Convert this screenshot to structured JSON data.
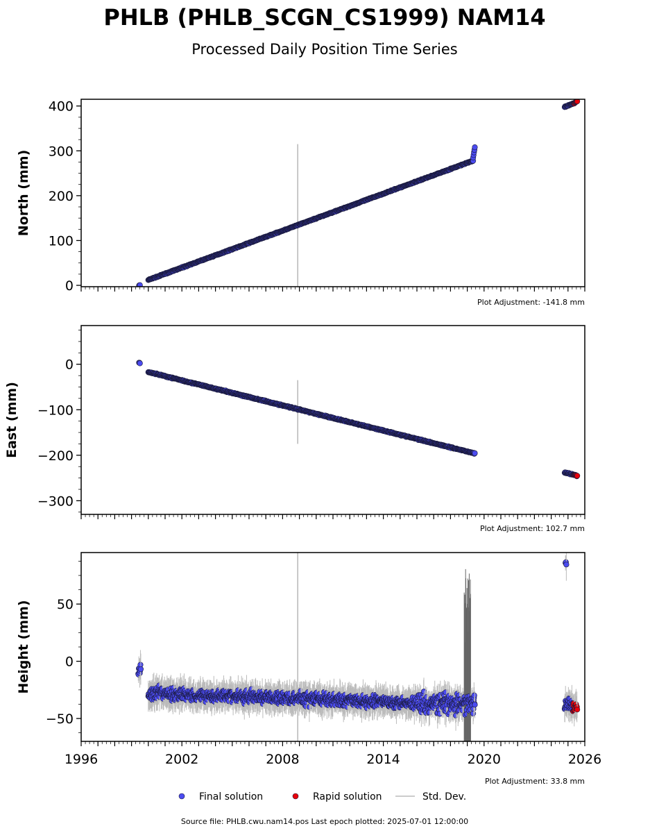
{
  "header": {
    "title": "PHLB (PHLB_SCGN_CS1999) NAM14",
    "subtitle": "Processed Daily Position Time Series"
  },
  "footer": {
    "source": "Source file: PHLB.cwu.nam14.pos  Last epoch plotted: 2025-07-01 12:00:00"
  },
  "colors": {
    "final": "#4b4bf0",
    "rapid": "#e8000b",
    "stddev": "#bbbbbb",
    "edge": "#1a1a3a"
  },
  "legend": [
    {
      "label": "Final solution",
      "color": "#4b4bf0",
      "kind": "dot"
    },
    {
      "label": "Rapid solution",
      "color": "#e8000b",
      "kind": "dot"
    },
    {
      "label": "Std. Dev.",
      "color": "#bbbbbb",
      "kind": "line"
    }
  ],
  "chart_data": [
    {
      "type": "scatter",
      "ylabel": "North (mm)",
      "adjustment": "Plot Adjustment: -141.8 mm",
      "xlim": [
        1996,
        2026
      ],
      "ylim": [
        -3,
        415
      ],
      "yticks": [
        0,
        100,
        200,
        300,
        400
      ],
      "ytick_labels": [
        "0",
        "100",
        "200",
        "300",
        "400"
      ],
      "series": [
        {
          "name": "Final solution",
          "segments": [
            {
              "x": [
                1999.45,
                1999.5
              ],
              "y": [
                0,
                0
              ]
            },
            {
              "x": [
                2000.0,
                2019.35
              ],
              "y": [
                12,
                278
              ]
            },
            {
              "x": [
                2019.35,
                2019.45
              ],
              "y": [
                285,
                308
              ]
            },
            {
              "x": [
                2024.8,
                2025.35
              ],
              "y": [
                398,
                406
              ]
            }
          ]
        },
        {
          "name": "Rapid solution",
          "segments": [
            {
              "x": [
                2025.35,
                2025.55
              ],
              "y": [
                406,
                410
              ]
            }
          ]
        }
      ],
      "stddev_spike": {
        "x": 2008.9,
        "y_range": [
          -3,
          315
        ]
      }
    },
    {
      "type": "scatter",
      "ylabel": "East (mm)",
      "adjustment": "Plot Adjustment: 102.7 mm",
      "xlim": [
        1996,
        2026
      ],
      "ylim": [
        -330,
        85
      ],
      "yticks": [
        0,
        -100,
        -200,
        -300
      ],
      "ytick_labels": [
        "0",
        "−100",
        "−200",
        "−300"
      ],
      "series": [
        {
          "name": "Final solution",
          "segments": [
            {
              "x": [
                1999.45,
                1999.5
              ],
              "y": [
                3,
                3
              ]
            },
            {
              "x": [
                2000.0,
                2019.45
              ],
              "y": [
                -17,
                -196
              ]
            },
            {
              "x": [
                2024.8,
                2025.35
              ],
              "y": [
                -238,
                -243
              ]
            }
          ]
        },
        {
          "name": "Rapid solution",
          "segments": [
            {
              "x": [
                2025.35,
                2025.55
              ],
              "y": [
                -243,
                -245
              ]
            }
          ]
        }
      ],
      "stddev_spike": {
        "x": 2008.9,
        "y_range": [
          -175,
          -35
        ]
      }
    },
    {
      "type": "scatter",
      "ylabel": "Height (mm)",
      "adjustment": "Plot Adjustment: 33.8 mm",
      "xlim": [
        1996,
        2026
      ],
      "ylim": [
        -70,
        95
      ],
      "yticks": [
        50,
        0,
        -50
      ],
      "ytick_labels": [
        "50",
        "0",
        "−50"
      ],
      "xticks": [
        1996,
        2002,
        2008,
        2014,
        2020,
        2026
      ],
      "xtick_labels": [
        "1996",
        "2002",
        "2008",
        "2014",
        "2020",
        "2026"
      ],
      "series": [
        {
          "name": "Final solution",
          "segments": [
            {
              "x": [
                1999.4,
                1999.55
              ],
              "y": [
                -8,
                -8
              ]
            },
            {
              "x": [
                2000.0,
                2019.45
              ],
              "y": [
                -28,
                -38
              ]
            },
            {
              "x": [
                2024.8,
                2025.3
              ],
              "y": [
                -38,
                -38
              ]
            },
            {
              "x": [
                2024.85,
                2024.9
              ],
              "y": [
                88,
                88
              ]
            }
          ]
        },
        {
          "name": "Rapid solution",
          "segments": [
            {
              "x": [
                2025.3,
                2025.55
              ],
              "y": [
                -40,
                -40
              ]
            }
          ]
        }
      ],
      "stddev_spike": {
        "x": 2008.9,
        "y_range": [
          -70,
          95
        ]
      }
    }
  ]
}
